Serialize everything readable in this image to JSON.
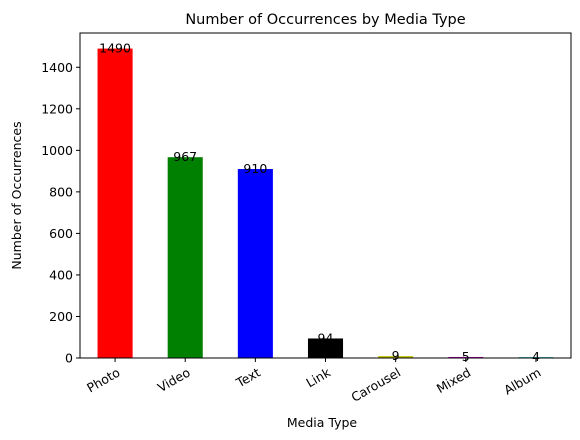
{
  "chart_data": {
    "type": "bar",
    "title": "Number of Occurrences by Media Type",
    "xlabel": "Media Type",
    "ylabel": "Number of Occurrences",
    "categories": [
      "Photo",
      "Video",
      "Text",
      "Link",
      "Carousel",
      "Mixed",
      "Album"
    ],
    "values": [
      1490,
      967,
      910,
      94,
      9,
      5,
      4
    ],
    "data_labels": [
      "1490",
      "967",
      "910",
      "94",
      "9",
      "5",
      "4"
    ],
    "colors": [
      "#ff0000",
      "#008000",
      "#0000ff",
      "#000000",
      "#bfbf00",
      "#bf00bf",
      "#00bfbf"
    ],
    "ylim": [
      0,
      1565
    ],
    "yticks": [
      0,
      200,
      400,
      600,
      800,
      1000,
      1200,
      1400
    ],
    "ytick_labels": [
      "0",
      "200",
      "400",
      "600",
      "800",
      "1000",
      "1200",
      "1400"
    ],
    "grid": false,
    "legend": "none"
  }
}
